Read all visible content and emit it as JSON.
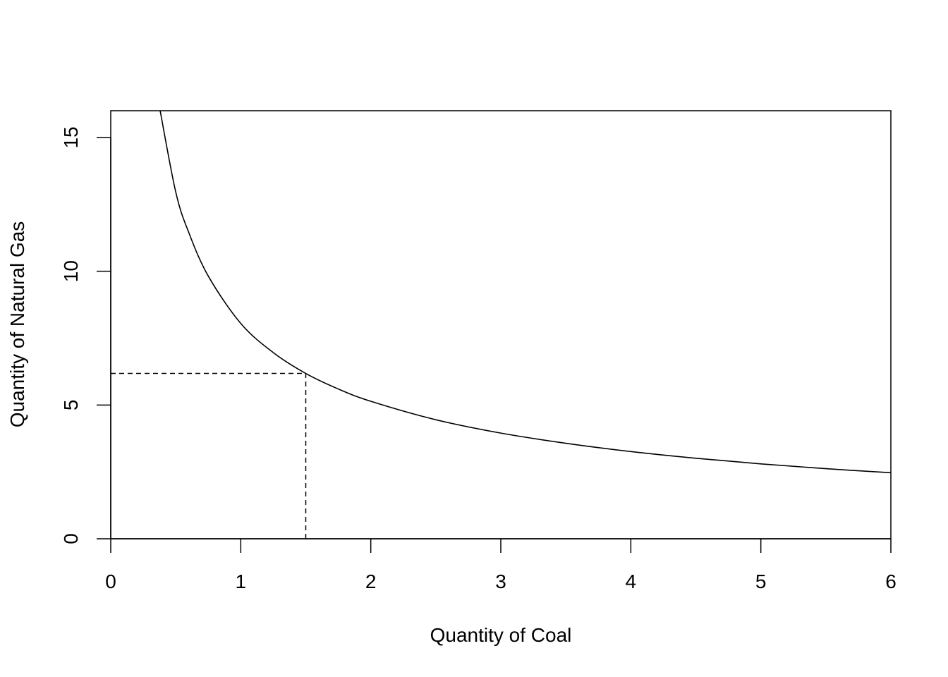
{
  "chart_data": {
    "type": "line",
    "title": "",
    "xlabel": "Quantity of Coal",
    "ylabel": "Quantity of Natural Gas",
    "xlim": [
      0,
      6
    ],
    "ylim": [
      0,
      16
    ],
    "x_ticks": [
      "0",
      "1",
      "2",
      "3",
      "4",
      "5",
      "6"
    ],
    "y_ticks": [
      "0",
      "5",
      "10",
      "15"
    ],
    "grid": false,
    "legend": "none",
    "series": [
      {
        "style": "solid",
        "color": "#000000",
        "x": [
          0.38,
          0.5,
          0.6,
          0.75,
          1.0,
          1.25,
          1.5,
          1.75,
          2.0,
          2.5,
          3.0,
          3.5,
          4.0,
          4.5,
          5.0,
          5.5,
          6.0
        ],
        "y": [
          16.0,
          12.96,
          11.45,
          9.82,
          8.05,
          6.96,
          6.18,
          5.6,
          5.14,
          4.45,
          3.95,
          3.57,
          3.26,
          3.01,
          2.8,
          2.62,
          2.47
        ]
      }
    ],
    "reference_lines": [
      {
        "style": "dashed",
        "x": [
          0,
          1.5
        ],
        "y": [
          6.18,
          6.18
        ]
      },
      {
        "style": "dashed",
        "x": [
          1.5,
          1.5
        ],
        "y": [
          0,
          6.18
        ]
      }
    ]
  }
}
